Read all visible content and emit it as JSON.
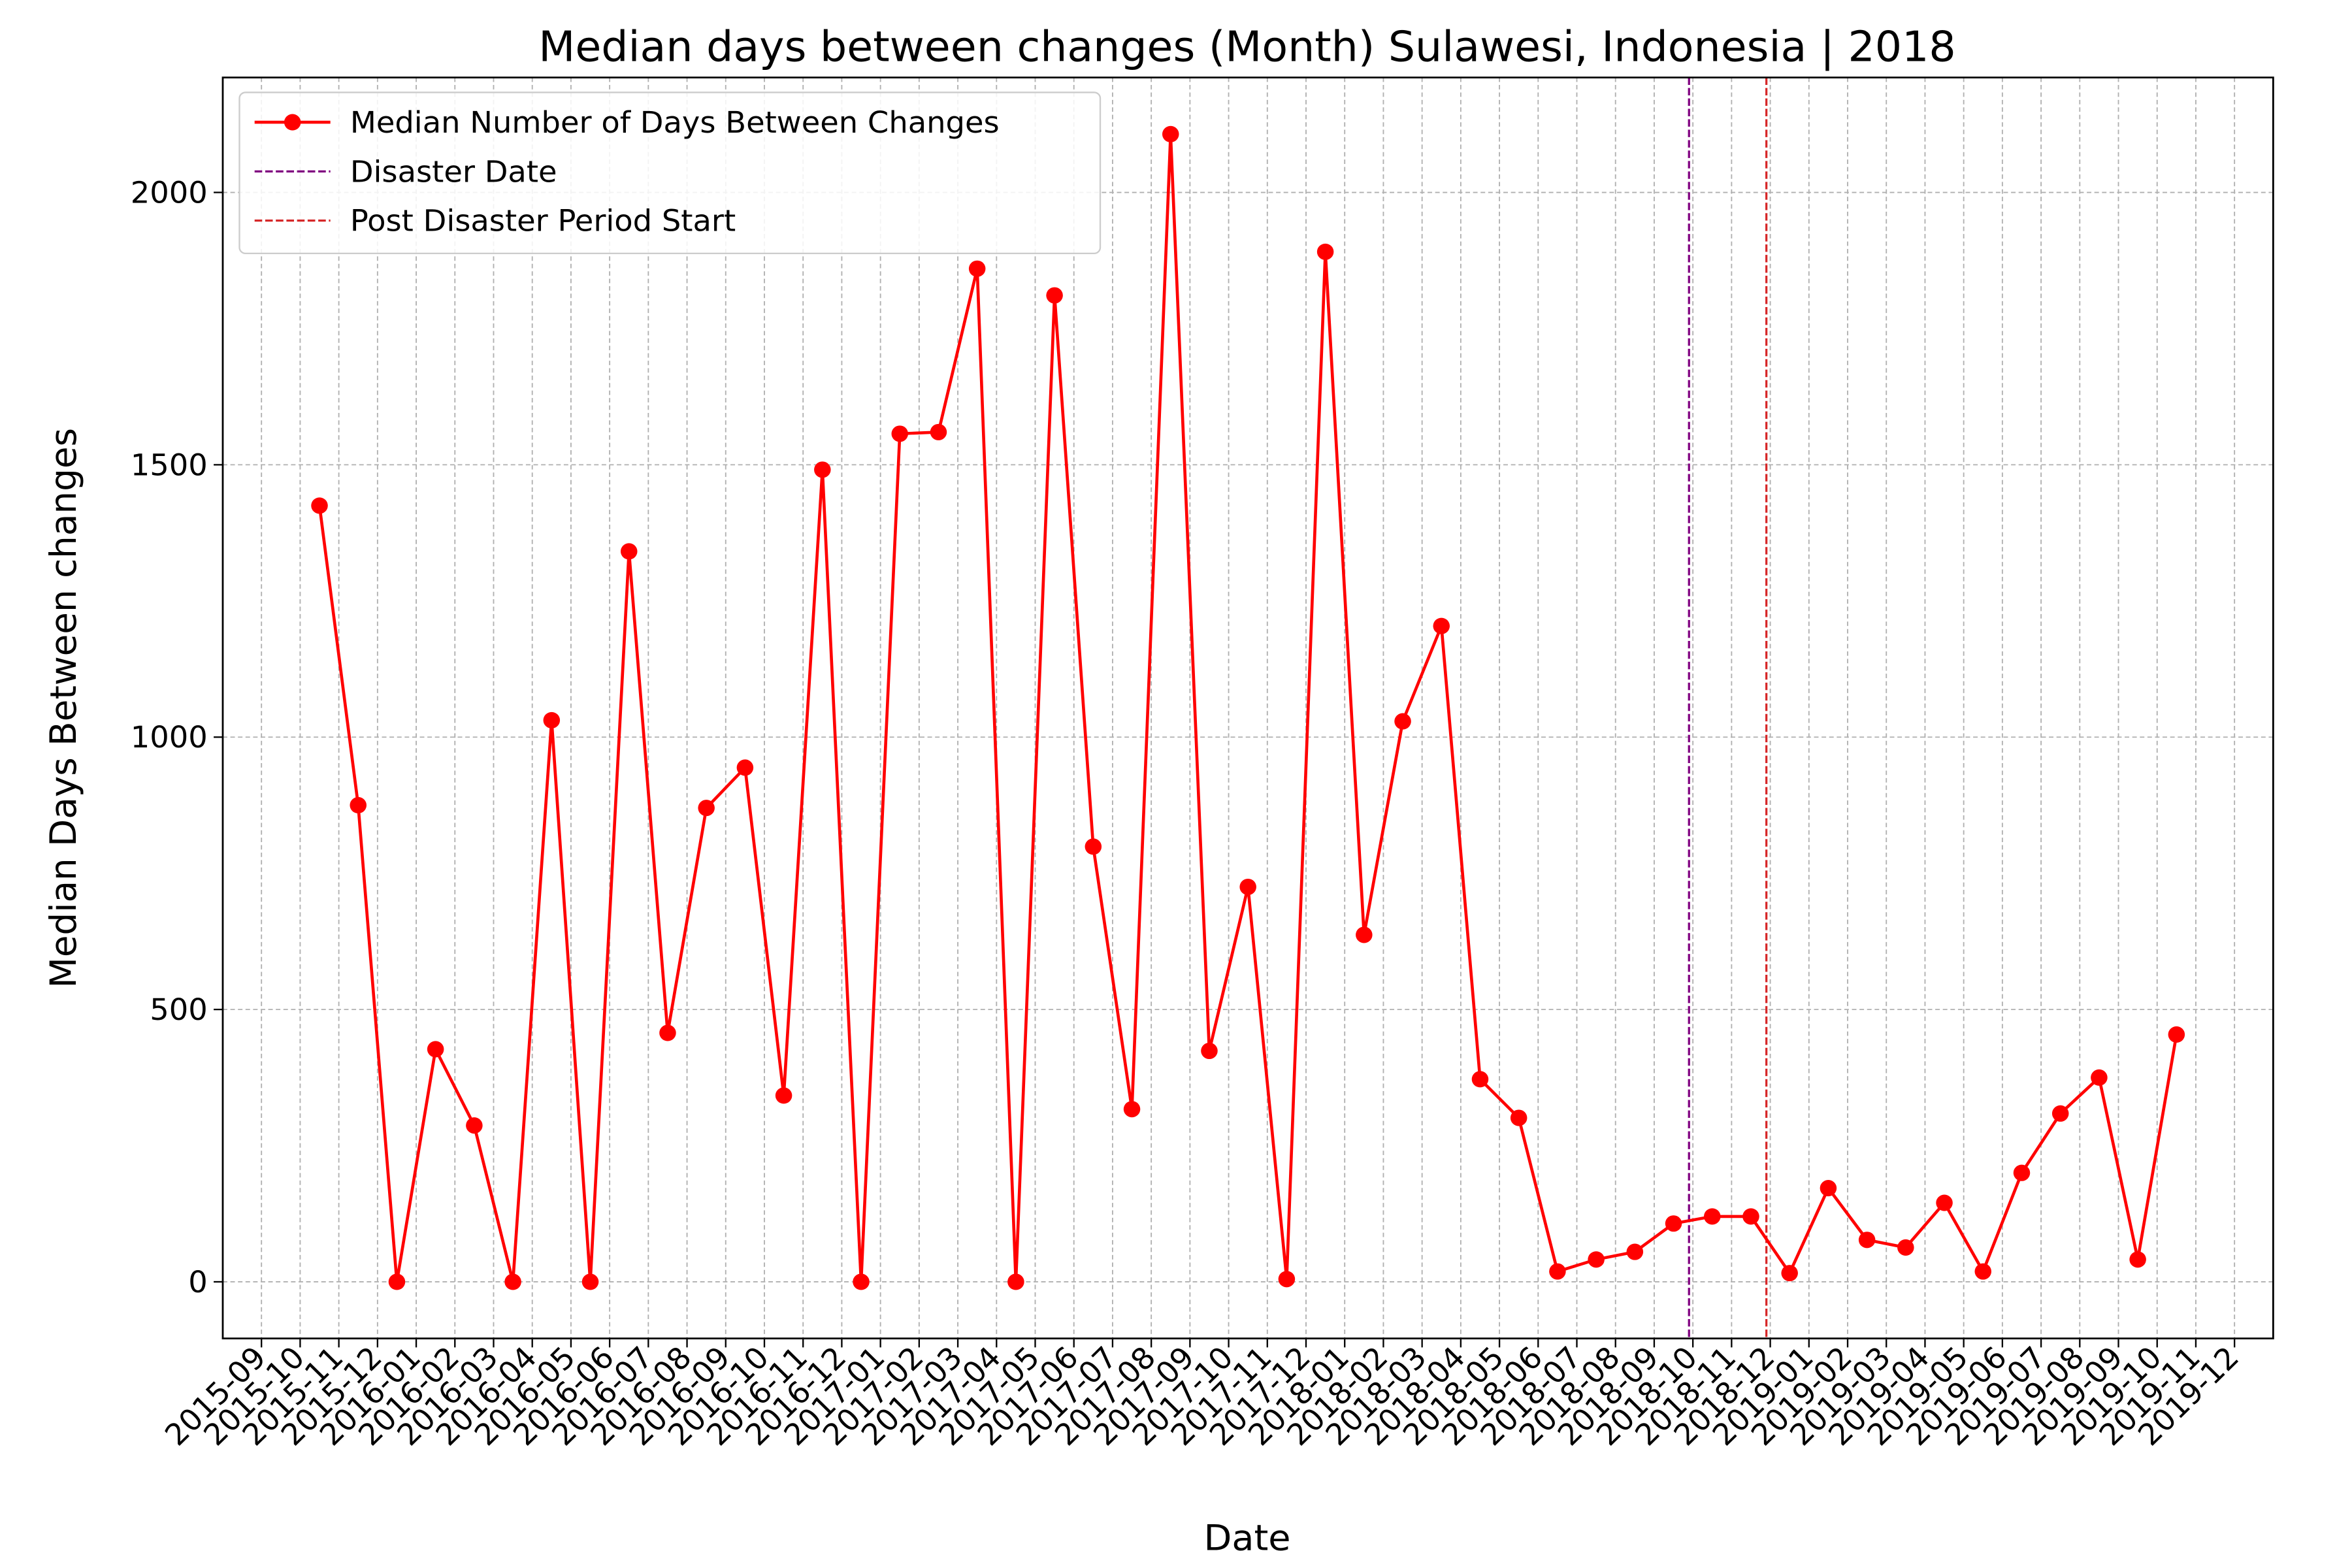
{
  "chart_data": {
    "type": "line",
    "title": "Median days between changes (Month) Sulawesi, Indonesia | 2018",
    "xlabel": "Date",
    "ylabel": "Median Days Between changes",
    "x": [
      "2015-10",
      "2015-11",
      "2015-12",
      "2016-01",
      "2016-02",
      "2016-03",
      "2016-04",
      "2016-05",
      "2016-06",
      "2016-07",
      "2016-08",
      "2016-09",
      "2016-10",
      "2016-11",
      "2016-12",
      "2017-01",
      "2017-02",
      "2017-03",
      "2017-04",
      "2017-05",
      "2017-06",
      "2017-07",
      "2017-08",
      "2017-09",
      "2017-10",
      "2017-11",
      "2017-12",
      "2018-01",
      "2018-02",
      "2018-03",
      "2018-04",
      "2018-05",
      "2018-06",
      "2018-07",
      "2018-08",
      "2018-09",
      "2018-10",
      "2018-11",
      "2018-12",
      "2019-01",
      "2019-02",
      "2019-03",
      "2019-04",
      "2019-05",
      "2019-06",
      "2019-07",
      "2019-08",
      "2019-09",
      "2019-10"
    ],
    "series": [
      {
        "name": "Median Number of Days Between Changes",
        "color": "#ff0000",
        "values": [
          1425,
          875,
          0,
          427,
          287,
          0,
          1031,
          0,
          1341,
          457,
          870,
          944,
          342,
          1491,
          0,
          1557,
          1560,
          1860,
          0,
          1811,
          799,
          317,
          2107,
          424,
          725,
          5,
          1891,
          637,
          1029,
          1204,
          372,
          301,
          19,
          41,
          55,
          107,
          120,
          120,
          16,
          172,
          77,
          63,
          145,
          19,
          200,
          309,
          375,
          41,
          454
        ]
      }
    ],
    "vlines": [
      {
        "name": "Disaster Date",
        "x": "2018-09-28",
        "color": "#800080"
      },
      {
        "name": "Post Disaster Period Start",
        "x": "2018-11-28",
        "color": "#d62728"
      }
    ],
    "xlim": [
      "2015-08",
      "2020-01"
    ],
    "xticks": [
      "2015-09",
      "2015-10",
      "2015-11",
      "2015-12",
      "2016-01",
      "2016-02",
      "2016-03",
      "2016-04",
      "2016-05",
      "2016-06",
      "2016-07",
      "2016-08",
      "2016-09",
      "2016-10",
      "2016-11",
      "2016-12",
      "2017-01",
      "2017-02",
      "2017-03",
      "2017-04",
      "2017-05",
      "2017-06",
      "2017-07",
      "2017-08",
      "2017-09",
      "2017-10",
      "2017-11",
      "2017-12",
      "2018-01",
      "2018-02",
      "2018-03",
      "2018-04",
      "2018-05",
      "2018-06",
      "2018-07",
      "2018-08",
      "2018-09",
      "2018-10",
      "2018-11",
      "2018-12",
      "2019-01",
      "2019-02",
      "2019-03",
      "2019-04",
      "2019-05",
      "2019-06",
      "2019-07",
      "2019-08",
      "2019-09",
      "2019-10",
      "2019-11",
      "2019-12"
    ],
    "ylim": [
      -104,
      2211
    ],
    "yticks": [
      0,
      500,
      1000,
      1500,
      2000
    ],
    "grid": true,
    "legend": "upper left"
  }
}
